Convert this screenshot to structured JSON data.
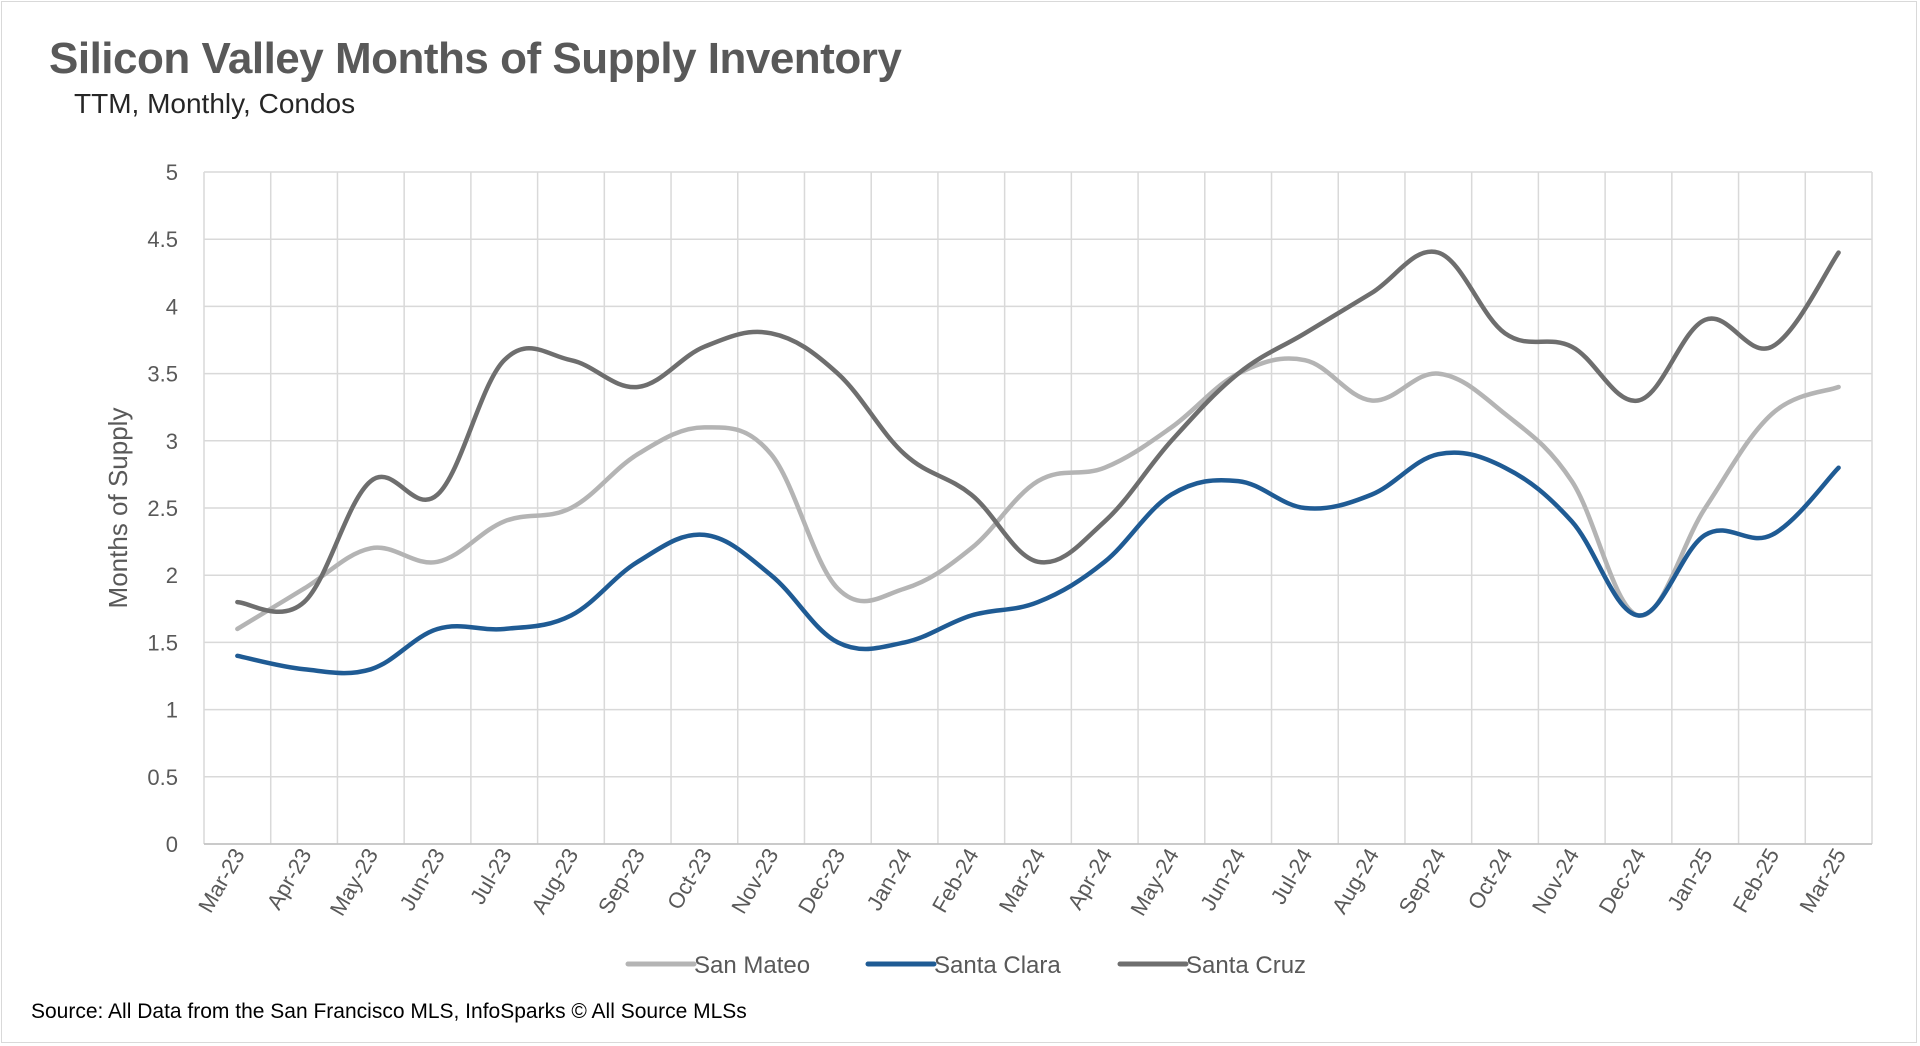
{
  "chart_data": {
    "type": "line",
    "title": "Silicon Valley Months of Supply Inventory",
    "subtitle": "TTM, Monthly, Condos",
    "ylabel": "Months of Supply",
    "xlabel": "",
    "ylim": [
      0,
      5
    ],
    "yticks": [
      0,
      0.5,
      1,
      1.5,
      2,
      2.5,
      3,
      3.5,
      4,
      4.5,
      5
    ],
    "grid": true,
    "legend_position": "bottom",
    "categories": [
      "Mar-23",
      "Apr-23",
      "May-23",
      "Jun-23",
      "Jul-23",
      "Aug-23",
      "Sep-23",
      "Oct-23",
      "Nov-23",
      "Dec-23",
      "Jan-24",
      "Feb-24",
      "Mar-24",
      "Apr-24",
      "May-24",
      "Jun-24",
      "Jul-24",
      "Aug-24",
      "Sep-24",
      "Oct-24",
      "Nov-24",
      "Dec-24",
      "Jan-25",
      "Feb-25",
      "Mar-25"
    ],
    "series": [
      {
        "name": "San Mateo",
        "color": "#b4b4b4",
        "values": [
          1.6,
          1.9,
          2.2,
          2.1,
          2.4,
          2.5,
          2.9,
          3.1,
          2.9,
          1.9,
          1.9,
          2.2,
          2.7,
          2.8,
          3.1,
          3.5,
          3.6,
          3.3,
          3.5,
          3.2,
          2.7,
          1.7,
          2.5,
          3.2,
          3.4
        ]
      },
      {
        "name": "Santa Clara",
        "color": "#1f5b94",
        "values": [
          1.4,
          1.3,
          1.3,
          1.6,
          1.6,
          1.7,
          2.1,
          2.3,
          2.0,
          1.5,
          1.5,
          1.7,
          1.8,
          2.1,
          2.6,
          2.7,
          2.5,
          2.6,
          2.9,
          2.8,
          2.4,
          1.7,
          2.3,
          2.3,
          2.8
        ]
      },
      {
        "name": "Santa Cruz",
        "color": "#6e6e6e",
        "values": [
          1.8,
          1.8,
          2.7,
          2.6,
          3.6,
          3.6,
          3.4,
          3.7,
          3.8,
          3.5,
          2.9,
          2.6,
          2.1,
          2.4,
          3.0,
          3.5,
          3.8,
          4.1,
          4.4,
          3.8,
          3.7,
          3.3,
          3.9,
          3.7,
          4.4
        ]
      }
    ],
    "source": "Source: All Data from the San Francisco MLS, InfoSparks © All Source MLSs"
  }
}
